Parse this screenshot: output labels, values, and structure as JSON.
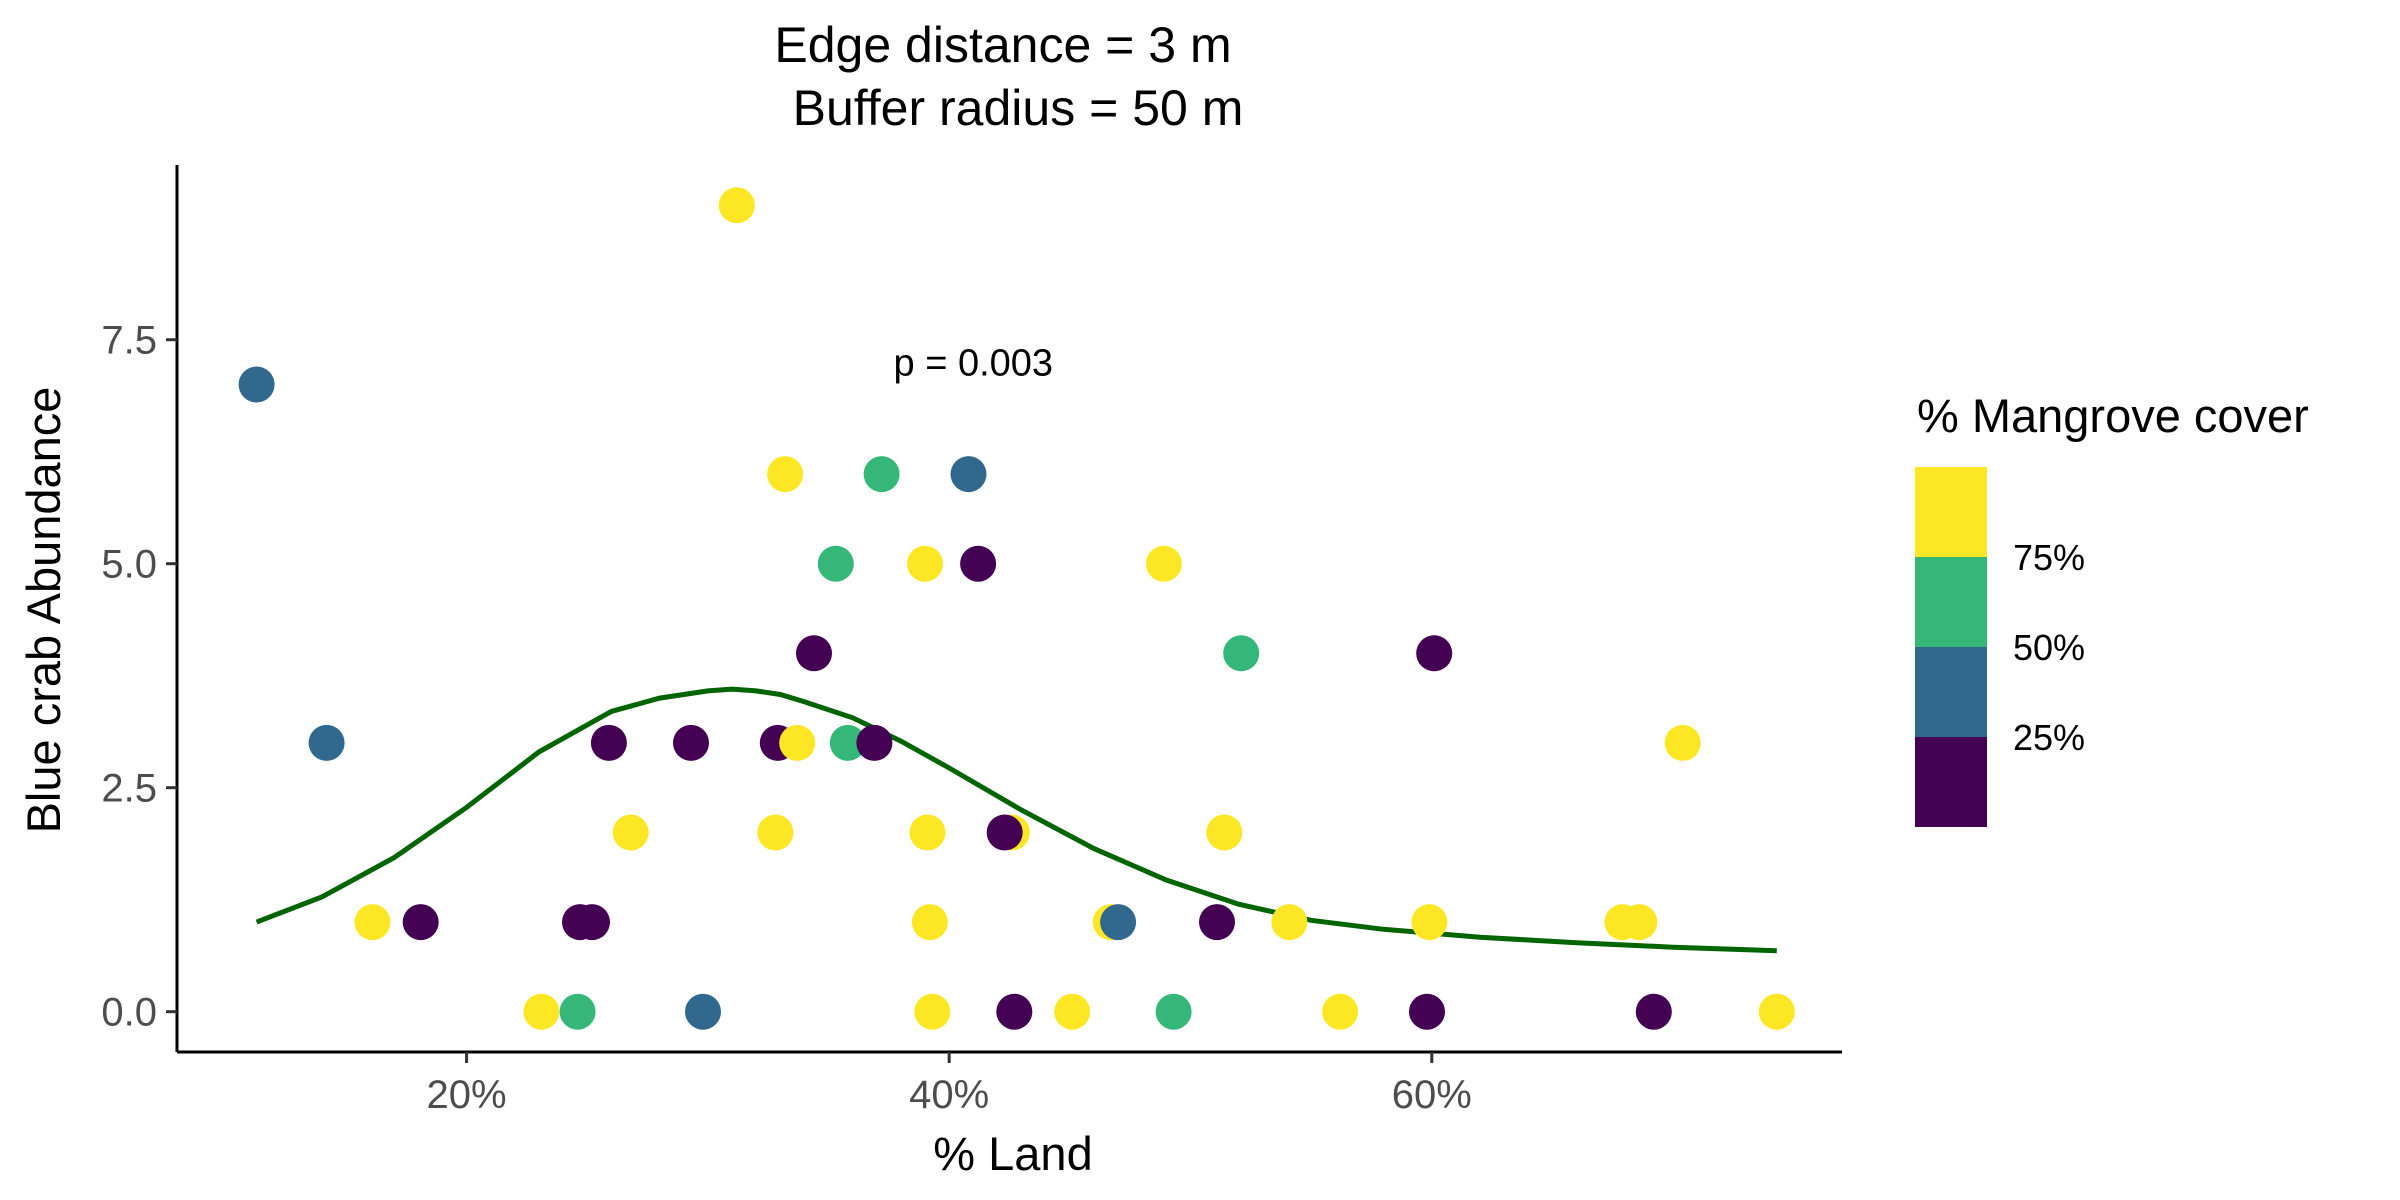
{
  "chart_data": {
    "type": "scatter",
    "title": "Edge distance = 3 m",
    "subtitle": "Buffer radius = 50 m",
    "xlabel": "% Land",
    "ylabel": "Blue crab Abundance",
    "xlim": [
      8,
      77
    ],
    "ylim": [
      -0.45,
      9.45
    ],
    "x_ticks": [
      20,
      40,
      60
    ],
    "x_tick_labels": [
      "20%",
      "40%",
      "60%"
    ],
    "y_ticks": [
      0,
      2.5,
      5,
      7.5
    ],
    "y_tick_labels": [
      "0.0",
      "2.5",
      "5.0",
      "7.5"
    ],
    "grid": false,
    "annotation": {
      "text": "p = 0.003",
      "x": 41,
      "y": 7.1
    },
    "legend": {
      "title": "% Mangrove cover",
      "placement": "right",
      "labels": [
        "75%",
        "50%",
        "25%"
      ],
      "bins": [
        {
          "color": "#FDE725"
        },
        {
          "color": "#35B779"
        },
        {
          "color": "#31688E"
        },
        {
          "color": "#440154"
        }
      ]
    },
    "colors": {
      "yellow": "#FDE725",
      "green": "#35B779",
      "blue": "#31688E",
      "purple": "#440154",
      "trend": "#006400"
    },
    "points": [
      {
        "x": 11.3,
        "y": 7,
        "c": "blue"
      },
      {
        "x": 14.2,
        "y": 3,
        "c": "blue"
      },
      {
        "x": 16.1,
        "y": 1,
        "c": "yellow"
      },
      {
        "x": 18.1,
        "y": 1,
        "c": "purple"
      },
      {
        "x": 23.1,
        "y": 0,
        "c": "yellow"
      },
      {
        "x": 24.6,
        "y": 0,
        "c": "green"
      },
      {
        "x": 24.7,
        "y": 1,
        "c": "purple"
      },
      {
        "x": 25.2,
        "y": 1,
        "c": "purple"
      },
      {
        "x": 25.9,
        "y": 3,
        "c": "purple"
      },
      {
        "x": 26.8,
        "y": 2,
        "c": "yellow"
      },
      {
        "x": 29.3,
        "y": 3,
        "c": "purple"
      },
      {
        "x": 29.8,
        "y": 0,
        "c": "blue"
      },
      {
        "x": 31.2,
        "y": 9,
        "c": "yellow"
      },
      {
        "x": 32.8,
        "y": 2,
        "c": "yellow"
      },
      {
        "x": 32.9,
        "y": 3,
        "c": "purple"
      },
      {
        "x": 33.2,
        "y": 6,
        "c": "yellow"
      },
      {
        "x": 33.7,
        "y": 3,
        "c": "yellow"
      },
      {
        "x": 34.4,
        "y": 4,
        "c": "purple"
      },
      {
        "x": 35.3,
        "y": 5,
        "c": "green"
      },
      {
        "x": 35.8,
        "y": 3,
        "c": "green"
      },
      {
        "x": 36.9,
        "y": 3,
        "c": "purple"
      },
      {
        "x": 37.2,
        "y": 6,
        "c": "green"
      },
      {
        "x": 39.0,
        "y": 5,
        "c": "yellow"
      },
      {
        "x": 39.1,
        "y": 2,
        "c": "yellow"
      },
      {
        "x": 39.2,
        "y": 1,
        "c": "yellow"
      },
      {
        "x": 39.3,
        "y": 0,
        "c": "yellow"
      },
      {
        "x": 40.8,
        "y": 6,
        "c": "blue"
      },
      {
        "x": 41.2,
        "y": 5,
        "c": "purple"
      },
      {
        "x": 42.6,
        "y": 2,
        "c": "yellow"
      },
      {
        "x": 42.3,
        "y": 2,
        "c": "purple"
      },
      {
        "x": 42.7,
        "y": 0,
        "c": "purple"
      },
      {
        "x": 45.1,
        "y": 0,
        "c": "yellow"
      },
      {
        "x": 46.7,
        "y": 1,
        "c": "yellow"
      },
      {
        "x": 47.0,
        "y": 1,
        "c": "blue"
      },
      {
        "x": 48.9,
        "y": 5,
        "c": "yellow"
      },
      {
        "x": 49.3,
        "y": 0,
        "c": "green"
      },
      {
        "x": 51.1,
        "y": 1,
        "c": "purple"
      },
      {
        "x": 51.4,
        "y": 2,
        "c": "yellow"
      },
      {
        "x": 52.1,
        "y": 4,
        "c": "green"
      },
      {
        "x": 54.1,
        "y": 1,
        "c": "yellow"
      },
      {
        "x": 56.2,
        "y": 0,
        "c": "yellow"
      },
      {
        "x": 59.8,
        "y": 0,
        "c": "purple"
      },
      {
        "x": 59.9,
        "y": 1,
        "c": "yellow"
      },
      {
        "x": 60.1,
        "y": 4,
        "c": "purple"
      },
      {
        "x": 67.9,
        "y": 1,
        "c": "yellow"
      },
      {
        "x": 68.6,
        "y": 1,
        "c": "yellow"
      },
      {
        "x": 69.2,
        "y": 0,
        "c": "purple"
      },
      {
        "x": 70.4,
        "y": 3,
        "c": "yellow"
      },
      {
        "x": 74.3,
        "y": 0,
        "c": "yellow"
      }
    ],
    "trend_line": {
      "x": [
        11.3,
        14,
        17,
        20,
        23,
        26,
        28,
        30,
        31,
        32,
        33,
        34,
        36,
        38,
        40,
        43,
        46,
        49,
        52,
        55,
        58,
        62,
        66,
        70,
        74.3
      ],
      "y": [
        1.0,
        1.28,
        1.72,
        2.28,
        2.9,
        3.35,
        3.5,
        3.58,
        3.6,
        3.58,
        3.54,
        3.46,
        3.28,
        3.02,
        2.72,
        2.25,
        1.82,
        1.47,
        1.2,
        1.02,
        0.92,
        0.83,
        0.77,
        0.72,
        0.68
      ]
    }
  }
}
